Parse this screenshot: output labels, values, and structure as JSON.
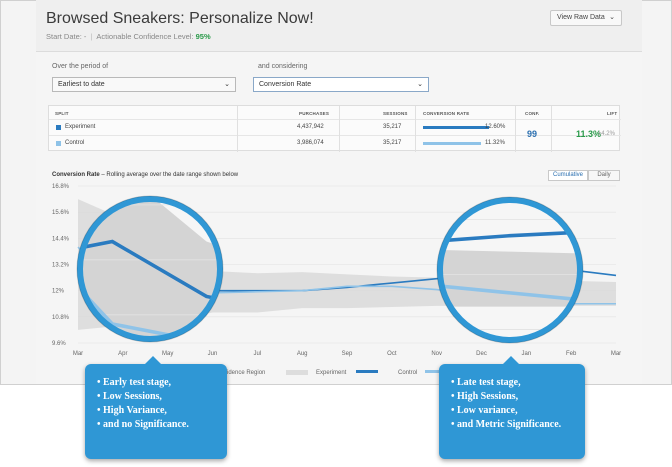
{
  "header": {
    "title": "Browsed Sneakers: Personalize Now!",
    "start_date_label": "Start Date: -",
    "confidence_label": "Actionable Confidence Level:",
    "confidence_value": "95%",
    "view_raw_button": "View Raw Data"
  },
  "filters": {
    "period_label": "Over the period of",
    "period_value": "Earliest to date",
    "considering_label": "and considering",
    "metric_value": "Conversion Rate"
  },
  "table": {
    "headers": [
      "SPLIT",
      "PURCHASES",
      "SESSIONS",
      "CONVERSION RATE",
      "CONF.",
      "LIFT"
    ],
    "rows": [
      {
        "split": "Experiment",
        "purchases": "4,437,942",
        "sessions": "35,217",
        "rate": "12.60%",
        "color": "#2a7bc0",
        "rate_fraction": 0.126
      },
      {
        "split": "Control",
        "purchases": "3,986,074",
        "sessions": "35,217",
        "rate": "11.32%",
        "color": "#8fc3e8",
        "rate_fraction": 0.1132
      }
    ],
    "conf": "99",
    "lift": "11.3%",
    "lift_sub": "±4.2%"
  },
  "chart_header": {
    "metric": "Conversion Rate",
    "description": " – Rolling average over the date range shown below",
    "cumulative_label": "Cumulative",
    "daily_label": "Daily"
  },
  "chart_data": {
    "type": "line",
    "x": [
      "Mar",
      "Apr",
      "May",
      "Jun",
      "Jul",
      "Aug",
      "Sep",
      "Oct",
      "Nov",
      "Dec",
      "Jan",
      "Feb",
      "Mar"
    ],
    "ylim": [
      9.6,
      16.8
    ],
    "yticks": [
      "16.8%",
      "15.6%",
      "14.4%",
      "13.2%",
      "12%",
      "10.8%",
      "9.6%"
    ],
    "ytick_values": [
      16.8,
      15.6,
      14.4,
      13.2,
      12,
      10.8,
      9.6
    ],
    "series": [
      {
        "name": "Experiment",
        "color": "#2a7bc0",
        "values": [
          13.2,
          13.6,
          12.4,
          12.0,
          12.0,
          12.0,
          12.15,
          12.35,
          12.55,
          12.7,
          12.85,
          12.95,
          12.7
        ]
      },
      {
        "name": "Control",
        "color": "#8fc3e8",
        "values": [
          14.0,
          11.8,
          11.4,
          11.9,
          11.95,
          12.0,
          12.2,
          12.2,
          12.05,
          11.8,
          11.6,
          11.4,
          11.4
        ]
      }
    ],
    "confidence_band": {
      "name": "Confidence Region",
      "upper": [
        16.2,
        15.3,
        13.6,
        12.9,
        12.8,
        12.85,
        12.75,
        12.65,
        12.6,
        12.55,
        12.5,
        12.45,
        12.4
      ],
      "lower": [
        10.2,
        10.4,
        10.6,
        11.0,
        11.0,
        11.2,
        11.2,
        11.25,
        11.3,
        11.3,
        11.3,
        11.3,
        11.3
      ]
    },
    "legend": [
      {
        "label": "Confidence Region",
        "color": "#dddddd"
      },
      {
        "label": "Experiment",
        "color": "#2a7bc0"
      },
      {
        "label": "Control",
        "color": "#8fc3e8"
      }
    ],
    "legend_visible_text": [
      "nfidence Region",
      "Experiment",
      "Control"
    ],
    "grid": true
  },
  "callouts": {
    "early": [
      "Early test stage,",
      "Low Sessions,",
      "High Variance,",
      "and no Significance."
    ],
    "late": [
      "Late test stage,",
      "High Sessions,",
      "Low variance,",
      "and Metric Significance."
    ]
  }
}
